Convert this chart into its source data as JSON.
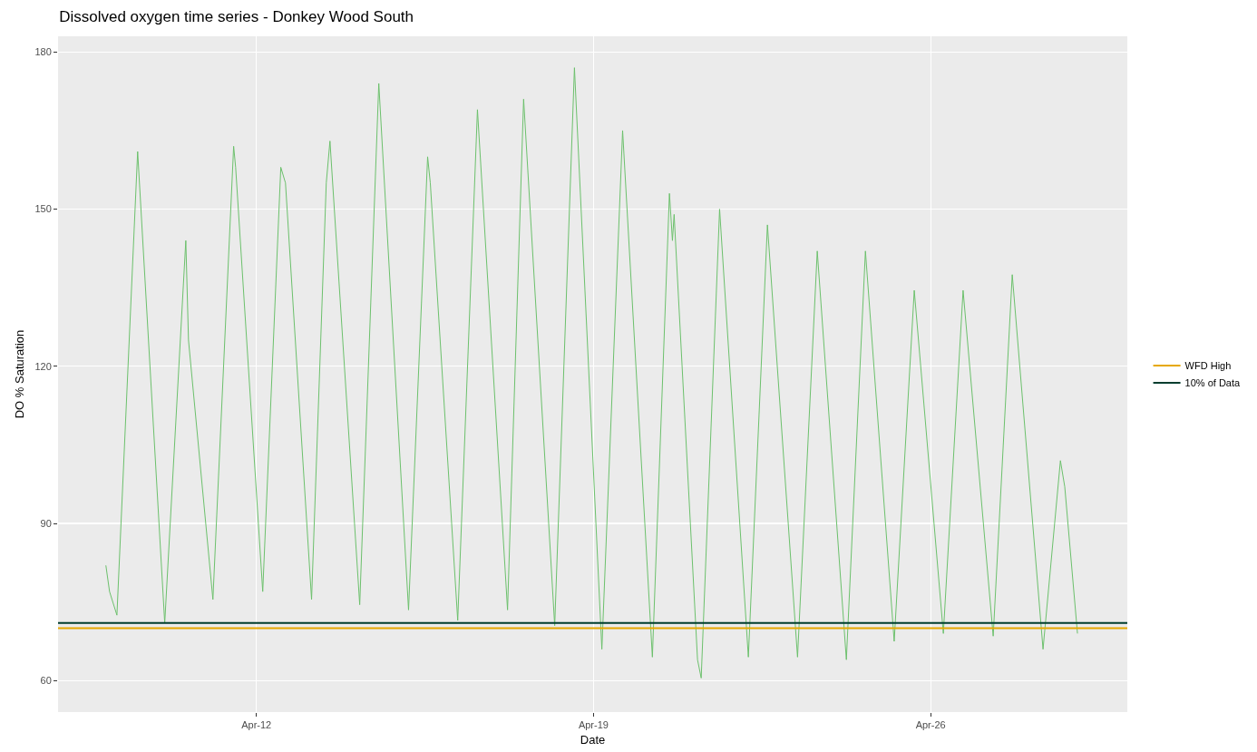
{
  "chart_data": {
    "type": "line",
    "title": "Dissolved oxygen time series - Donkey Wood South",
    "xlabel": "Date",
    "ylabel": "DO % Saturation",
    "x": [
      "--04-08T21:00",
      "--04-08T22:50",
      "--04-09T02:30",
      "--04-09T12:50",
      "--04-10T02:20",
      "--04-10T12:50",
      "--04-10T14:10",
      "--04-11T02:20",
      "--04-11T12:40",
      "--04-11T13:40",
      "--04-12T03:10",
      "--04-12T12:10",
      "--04-12T14:30",
      "--04-13T03:30",
      "--04-13T10:50",
      "--04-13T12:40",
      "--04-14T03:30",
      "--04-14T13:00",
      "--04-15T03:50",
      "--04-15T13:20",
      "--04-15T14:40",
      "--04-16T04:20",
      "--04-16T14:10",
      "--04-17T05:10",
      "--04-17T13:10",
      "--04-18T04:40",
      "--04-18T14:30",
      "--04-19T04:10",
      "--04-19T14:30",
      "--04-20T05:20",
      "--04-20T13:50",
      "--04-20T15:20",
      "--04-20T16:10",
      "--04-21T03:50",
      "--04-21T05:40",
      "--04-21T14:50",
      "--04-22T05:10",
      "--04-22T14:40",
      "--04-23T05:40",
      "--04-23T15:30",
      "--04-24T06:00",
      "--04-24T15:30",
      "--04-25T05:50",
      "--04-25T15:50",
      "--04-26T06:20",
      "--04-26T16:10",
      "--04-27T07:10",
      "--04-27T16:40",
      "--04-28T08:00",
      "--04-28T16:40",
      "--04-28T18:50",
      "--04-29T01:10"
    ],
    "series": [
      {
        "color": "#6cc06c",
        "values": [
          82,
          77,
          72.5,
          161,
          71,
          144,
          125,
          75.5,
          162,
          158,
          77,
          158,
          155,
          75.5,
          155,
          163,
          74.5,
          174,
          73.5,
          160,
          155,
          71.5,
          169,
          73.5,
          171,
          70.5,
          177,
          66,
          165,
          64.5,
          153,
          144,
          149,
          64,
          60.5,
          150,
          64.5,
          147,
          64.5,
          142,
          64,
          142,
          67.5,
          134.5,
          69,
          134.5,
          68.5,
          137.5,
          66,
          102,
          97,
          69
        ]
      }
    ],
    "ref_lines": [
      {
        "axis": "y",
        "value": 70,
        "label": "WFD High",
        "color": "#e6a800"
      },
      {
        "axis": "y",
        "value": 71,
        "label": "10% of Data",
        "color": "#003d2e"
      }
    ],
    "xlim": [
      "--04-07T21:10",
      "--04-30T02:00"
    ],
    "xticks": [
      {
        "value": "--04-12",
        "label": "Apr-12"
      },
      {
        "value": "--04-19",
        "label": "Apr-19"
      },
      {
        "value": "--04-26",
        "label": "Apr-26"
      }
    ],
    "ylim": [
      54,
      183
    ],
    "yticks": [
      60,
      90,
      120,
      150,
      180
    ],
    "grid": true,
    "legend": "right",
    "marker": "none",
    "line_style": "solid"
  }
}
